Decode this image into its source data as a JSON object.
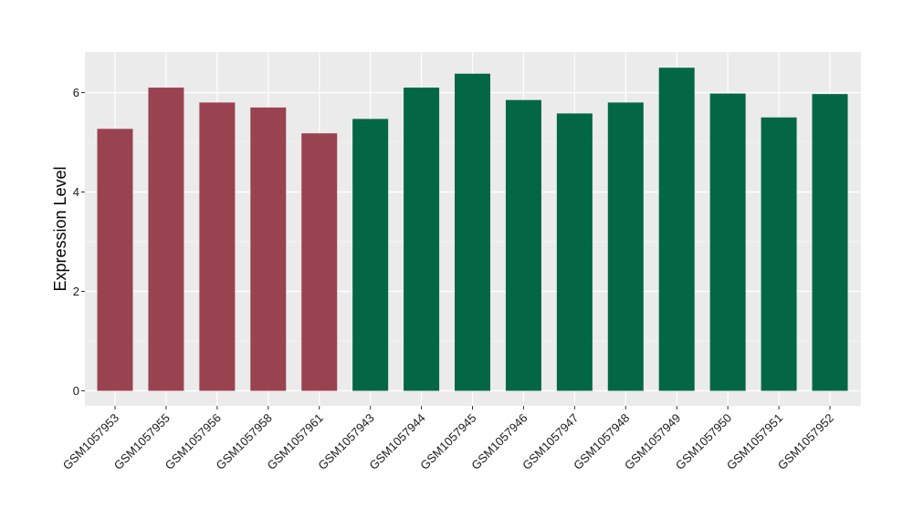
{
  "chart_data": {
    "type": "bar",
    "title": "",
    "xlabel": "",
    "ylabel": "Expression Level",
    "ylim": [
      0,
      6.8
    ],
    "yticks": [
      0,
      2,
      4,
      6
    ],
    "grid": true,
    "categories": [
      "GSM1057953",
      "GSM1057955",
      "GSM1057956",
      "GSM1057958",
      "GSM1057961",
      "GSM1057943",
      "GSM1057944",
      "GSM1057945",
      "GSM1057946",
      "GSM1057947",
      "GSM1057948",
      "GSM1057949",
      "GSM1057950",
      "GSM1057951",
      "GSM1057952"
    ],
    "values": [
      5.27,
      6.1,
      5.8,
      5.7,
      5.18,
      5.47,
      6.1,
      6.38,
      5.85,
      5.58,
      5.8,
      6.5,
      5.98,
      5.5,
      5.97
    ],
    "groups": [
      "red",
      "red",
      "red",
      "red",
      "red",
      "green",
      "green",
      "green",
      "green",
      "green",
      "green",
      "green",
      "green",
      "green",
      "green"
    ],
    "colors": {
      "red": "#9a4350",
      "green": "#036745",
      "panel": "#ebebeb",
      "grid": "#ffffff"
    }
  }
}
